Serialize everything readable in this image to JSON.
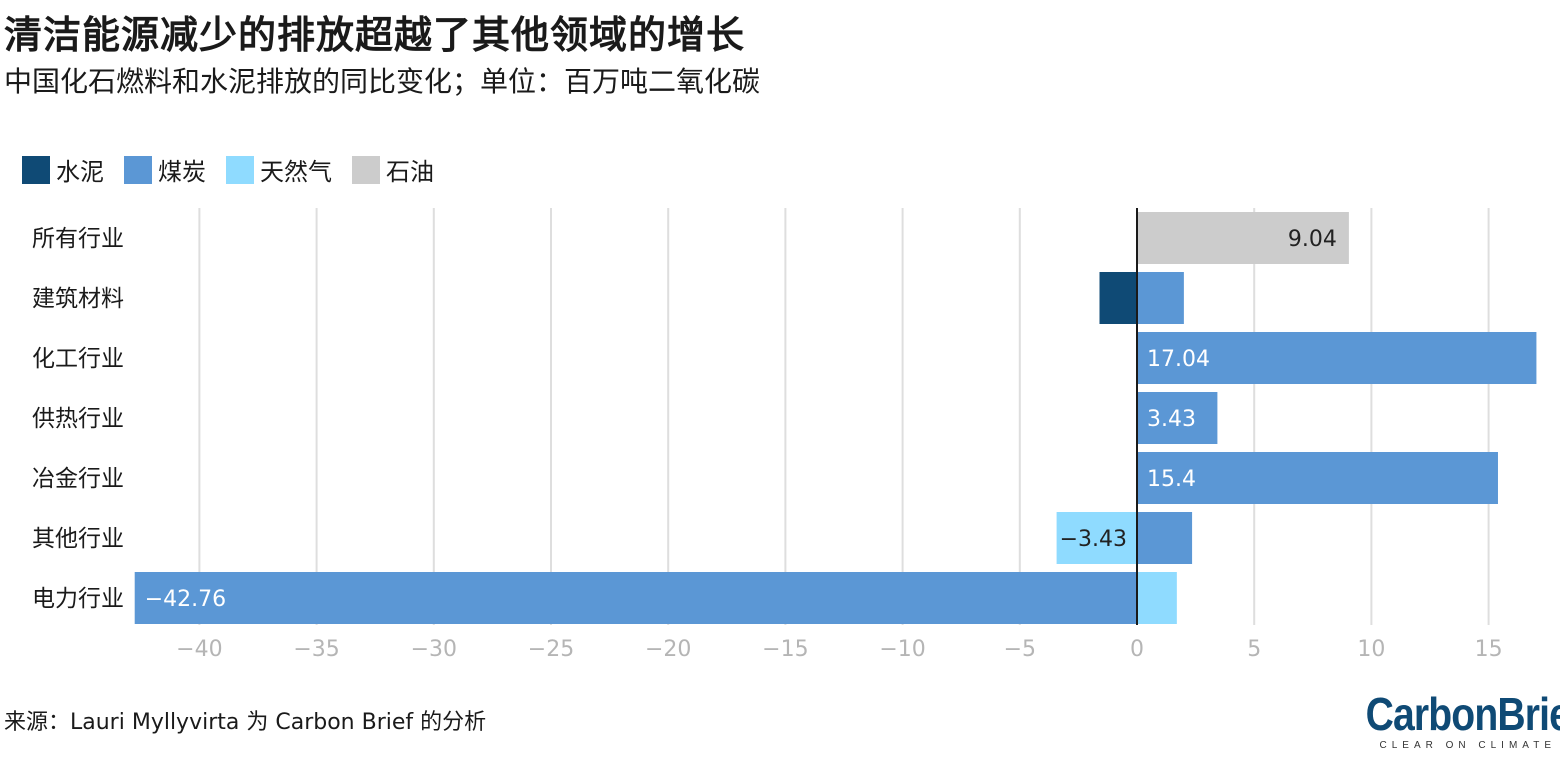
{
  "title": "清洁能源减少的排放超越了其他领域的增长",
  "subtitle": "中国化石燃料和水泥排放的同比变化；单位：百万吨二氧化碳",
  "source": "来源：Lauri Myllyvirta 为 Carbon Brief 的分析",
  "logo": {
    "wordmark": "CarbonBrief",
    "tagline": "CLEAR ON CLIMATE"
  },
  "chart_data": {
    "type": "bar",
    "orientation": "horizontal",
    "stacked": true,
    "categories": [
      "所有行业",
      "建筑材料",
      "化工行业",
      "供热行业",
      "冶金行业",
      "其他行业",
      "电力行业"
    ],
    "series": [
      {
        "name": "水泥",
        "color": "#0f4a75",
        "values": [
          0,
          -1.6,
          0,
          0,
          0,
          0,
          0
        ],
        "labels": [
          "",
          "",
          "",
          "",
          "",
          "",
          ""
        ]
      },
      {
        "name": "煤炭",
        "color": "#5b97d5",
        "values": [
          0,
          2.0,
          17.04,
          3.43,
          15.4,
          2.35,
          -42.76
        ],
        "labels": [
          "",
          "",
          "17.04",
          "3.43",
          "15.4",
          "",
          "−42.76"
        ]
      },
      {
        "name": "天然气",
        "color": "#8fdbff",
        "values": [
          0,
          0,
          0,
          0,
          0,
          -3.43,
          1.7
        ],
        "labels": [
          "",
          "",
          "",
          "",
          "",
          "−3.43",
          ""
        ]
      },
      {
        "name": "石油",
        "color": "#cccccc",
        "values": [
          9.04,
          0,
          0,
          0,
          0,
          0,
          0
        ],
        "labels": [
          "9.04",
          "",
          "",
          "",
          "",
          "",
          ""
        ]
      }
    ],
    "xlim": [
      -43,
      17
    ],
    "xticks": [
      -40,
      -35,
      -30,
      -25,
      -20,
      -15,
      -10,
      -5,
      0,
      5,
      10,
      15
    ],
    "xtick_labels": [
      "−40",
      "−35",
      "−30",
      "−25",
      "−20",
      "−15",
      "−10",
      "−5",
      "0",
      "5",
      "10",
      "15"
    ],
    "grid": true,
    "legend_position": "top-left"
  }
}
